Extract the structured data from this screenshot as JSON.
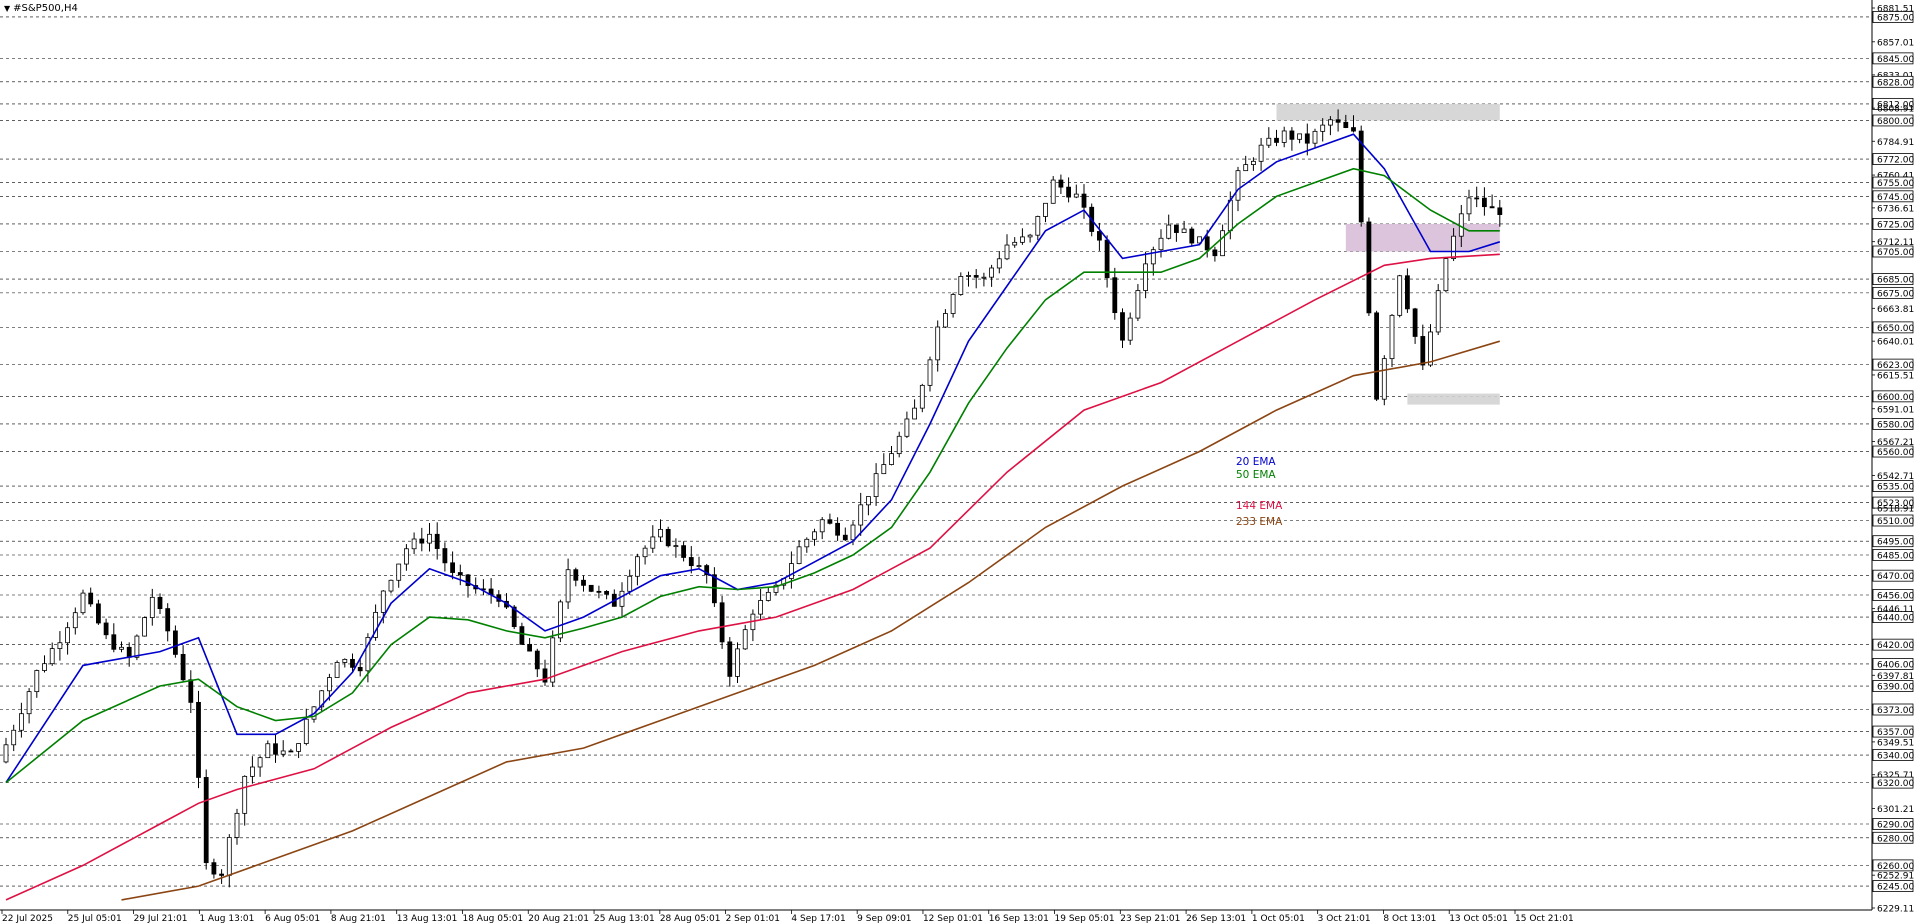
{
  "window": {
    "title": "#S&P500,H4"
  },
  "chart_data": {
    "type": "candlestick",
    "symbol": "#S&P500",
    "timeframe": "H4",
    "ylim": [
      6229.11,
      6881.51
    ],
    "price_axis_labels": [
      {
        "value": 6881.51,
        "boxed": false
      },
      {
        "value": 6875.0,
        "boxed": true
      },
      {
        "value": 6857.01,
        "boxed": false
      },
      {
        "value": 6845.0,
        "boxed": true
      },
      {
        "value": 6833.01,
        "boxed": false
      },
      {
        "value": 6828.0,
        "boxed": true
      },
      {
        "value": 6812.0,
        "boxed": true
      },
      {
        "value": 6808.91,
        "boxed": false
      },
      {
        "value": 6800.0,
        "boxed": true
      },
      {
        "value": 6784.91,
        "boxed": false
      },
      {
        "value": 6772.0,
        "boxed": true
      },
      {
        "value": 6760.41,
        "boxed": false
      },
      {
        "value": 6755.0,
        "boxed": true
      },
      {
        "value": 6745.0,
        "boxed": true
      },
      {
        "value": 6736.61,
        "boxed": false
      },
      {
        "value": 6725.0,
        "boxed": true
      },
      {
        "value": 6712.11,
        "boxed": false
      },
      {
        "value": 6705.0,
        "boxed": true
      },
      {
        "value": 6685.0,
        "boxed": true
      },
      {
        "value": 6675.0,
        "boxed": true
      },
      {
        "value": 6663.81,
        "boxed": false
      },
      {
        "value": 6650.0,
        "boxed": true
      },
      {
        "value": 6640.01,
        "boxed": false
      },
      {
        "value": 6623.0,
        "boxed": true
      },
      {
        "value": 6615.51,
        "boxed": false
      },
      {
        "value": 6600.0,
        "boxed": true
      },
      {
        "value": 6591.01,
        "boxed": false
      },
      {
        "value": 6580.0,
        "boxed": true
      },
      {
        "value": 6567.21,
        "boxed": false
      },
      {
        "value": 6560.0,
        "boxed": true
      },
      {
        "value": 6542.71,
        "boxed": false
      },
      {
        "value": 6535.0,
        "boxed": true
      },
      {
        "value": 6523.0,
        "boxed": true
      },
      {
        "value": 6518.91,
        "boxed": false
      },
      {
        "value": 6510.0,
        "boxed": true
      },
      {
        "value": 6495.0,
        "boxed": true
      },
      {
        "value": 6485.0,
        "boxed": true
      },
      {
        "value": 6470.0,
        "boxed": true
      },
      {
        "value": 6456.0,
        "boxed": true
      },
      {
        "value": 6446.11,
        "boxed": false
      },
      {
        "value": 6440.0,
        "boxed": true
      },
      {
        "value": 6420.0,
        "boxed": true
      },
      {
        "value": 6406.0,
        "boxed": true
      },
      {
        "value": 6397.81,
        "boxed": false
      },
      {
        "value": 6390.0,
        "boxed": true
      },
      {
        "value": 6373.0,
        "boxed": true
      },
      {
        "value": 6357.0,
        "boxed": true
      },
      {
        "value": 6349.51,
        "boxed": false
      },
      {
        "value": 6340.0,
        "boxed": true
      },
      {
        "value": 6325.71,
        "boxed": false
      },
      {
        "value": 6320.0,
        "boxed": true
      },
      {
        "value": 6301.21,
        "boxed": false
      },
      {
        "value": 6290.0,
        "boxed": true
      },
      {
        "value": 6280.0,
        "boxed": true
      },
      {
        "value": 6260.0,
        "boxed": true
      },
      {
        "value": 6252.91,
        "boxed": false
      },
      {
        "value": 6245.0,
        "boxed": true
      },
      {
        "value": 6229.11,
        "boxed": false
      }
    ],
    "time_axis_labels": [
      "22 Jul 2025",
      "25 Jul 05:01",
      "29 Jul 21:01",
      "1 Aug 13:01",
      "6 Aug 05:01",
      "8 Aug 21:01",
      "13 Aug 13:01",
      "18 Aug 05:01",
      "20 Aug 21:01",
      "25 Aug 13:01",
      "28 Aug 05:01",
      "2 Sep 01:01",
      "4 Sep 17:01",
      "9 Sep 09:01",
      "12 Sep 01:01",
      "16 Sep 13:01",
      "19 Sep 05:01",
      "23 Sep 21:01",
      "26 Sep 13:01",
      "1 Oct 05:01",
      "3 Oct 21:01",
      "8 Oct 13:01",
      "13 Oct 05:01",
      "15 Oct 21:01"
    ],
    "close_path": [
      [
        0,
        6335
      ],
      [
        2,
        6360
      ],
      [
        5,
        6400
      ],
      [
        8,
        6425
      ],
      [
        11,
        6456
      ],
      [
        14,
        6425
      ],
      [
        17,
        6410
      ],
      [
        20,
        6455
      ],
      [
        22,
        6430
      ],
      [
        25,
        6380
      ],
      [
        27,
        6260
      ],
      [
        29,
        6255
      ],
      [
        32,
        6325
      ],
      [
        35,
        6345
      ],
      [
        38,
        6340
      ],
      [
        41,
        6375
      ],
      [
        44,
        6410
      ],
      [
        47,
        6405
      ],
      [
        50,
        6460
      ],
      [
        53,
        6490
      ],
      [
        56,
        6500
      ],
      [
        59,
        6470
      ],
      [
        62,
        6460
      ],
      [
        65,
        6455
      ],
      [
        68,
        6420
      ],
      [
        71,
        6395
      ],
      [
        74,
        6475
      ],
      [
        77,
        6460
      ],
      [
        80,
        6450
      ],
      [
        83,
        6485
      ],
      [
        86,
        6500
      ],
      [
        89,
        6485
      ],
      [
        92,
        6470
      ],
      [
        95,
        6400
      ],
      [
        98,
        6445
      ],
      [
        101,
        6460
      ],
      [
        104,
        6490
      ],
      [
        107,
        6510
      ],
      [
        110,
        6500
      ],
      [
        113,
        6530
      ],
      [
        116,
        6560
      ],
      [
        119,
        6590
      ],
      [
        122,
        6650
      ],
      [
        125,
        6690
      ],
      [
        128,
        6685
      ],
      [
        131,
        6710
      ],
      [
        134,
        6715
      ],
      [
        137,
        6755
      ],
      [
        140,
        6745
      ],
      [
        143,
        6710
      ],
      [
        146,
        6640
      ],
      [
        149,
        6700
      ],
      [
        152,
        6725
      ],
      [
        155,
        6715
      ],
      [
        158,
        6705
      ],
      [
        161,
        6760
      ],
      [
        164,
        6780
      ],
      [
        167,
        6790
      ],
      [
        170,
        6785
      ],
      [
        173,
        6800
      ],
      [
        176,
        6790
      ],
      [
        179,
        6600
      ],
      [
        182,
        6690
      ],
      [
        185,
        6620
      ],
      [
        188,
        6700
      ],
      [
        191,
        6745
      ],
      [
        194,
        6735
      ]
    ],
    "ema_lines": [
      {
        "name": "20 EMA",
        "color": "#0000cc",
        "values": [
          [
            0,
            6320
          ],
          [
            10,
            6405
          ],
          [
            20,
            6415
          ],
          [
            25,
            6425
          ],
          [
            30,
            6355
          ],
          [
            35,
            6355
          ],
          [
            40,
            6370
          ],
          [
            45,
            6400
          ],
          [
            50,
            6450
          ],
          [
            55,
            6475
          ],
          [
            60,
            6465
          ],
          [
            65,
            6450
          ],
          [
            70,
            6430
          ],
          [
            75,
            6440
          ],
          [
            80,
            6455
          ],
          [
            85,
            6470
          ],
          [
            90,
            6475
          ],
          [
            95,
            6460
          ],
          [
            100,
            6465
          ],
          [
            105,
            6480
          ],
          [
            110,
            6495
          ],
          [
            115,
            6525
          ],
          [
            120,
            6580
          ],
          [
            125,
            6640
          ],
          [
            130,
            6680
          ],
          [
            135,
            6720
          ],
          [
            140,
            6735
          ],
          [
            145,
            6700
          ],
          [
            150,
            6705
          ],
          [
            155,
            6710
          ],
          [
            160,
            6750
          ],
          [
            165,
            6770
          ],
          [
            170,
            6780
          ],
          [
            175,
            6790
          ],
          [
            179,
            6765
          ],
          [
            185,
            6705
          ],
          [
            190,
            6705
          ],
          [
            194,
            6712
          ]
        ]
      },
      {
        "name": "50 EMA",
        "color": "#008000",
        "values": [
          [
            0,
            6320
          ],
          [
            10,
            6365
          ],
          [
            20,
            6390
          ],
          [
            25,
            6395
          ],
          [
            30,
            6375
          ],
          [
            35,
            6365
          ],
          [
            40,
            6368
          ],
          [
            45,
            6385
          ],
          [
            50,
            6420
          ],
          [
            55,
            6440
          ],
          [
            60,
            6438
          ],
          [
            65,
            6430
          ],
          [
            70,
            6425
          ],
          [
            75,
            6432
          ],
          [
            80,
            6440
          ],
          [
            85,
            6455
          ],
          [
            90,
            6462
          ],
          [
            95,
            6460
          ],
          [
            100,
            6462
          ],
          [
            105,
            6472
          ],
          [
            110,
            6485
          ],
          [
            115,
            6505
          ],
          [
            120,
            6545
          ],
          [
            125,
            6595
          ],
          [
            130,
            6635
          ],
          [
            135,
            6670
          ],
          [
            140,
            6690
          ],
          [
            145,
            6690
          ],
          [
            150,
            6690
          ],
          [
            155,
            6700
          ],
          [
            160,
            6725
          ],
          [
            165,
            6745
          ],
          [
            170,
            6755
          ],
          [
            175,
            6765
          ],
          [
            179,
            6760
          ],
          [
            185,
            6735
          ],
          [
            190,
            6720
          ],
          [
            194,
            6720
          ]
        ]
      },
      {
        "name": "144 EMA",
        "color": "#dd1144",
        "values": [
          [
            0,
            6235
          ],
          [
            10,
            6260
          ],
          [
            20,
            6290
          ],
          [
            25,
            6305
          ],
          [
            30,
            6315
          ],
          [
            40,
            6330
          ],
          [
            50,
            6360
          ],
          [
            60,
            6385
          ],
          [
            70,
            6395
          ],
          [
            80,
            6415
          ],
          [
            90,
            6430
          ],
          [
            100,
            6440
          ],
          [
            110,
            6460
          ],
          [
            120,
            6490
          ],
          [
            130,
            6545
          ],
          [
            140,
            6590
          ],
          [
            150,
            6610
          ],
          [
            160,
            6640
          ],
          [
            170,
            6670
          ],
          [
            179,
            6695
          ],
          [
            185,
            6700
          ],
          [
            194,
            6703
          ]
        ]
      },
      {
        "name": "233 EMA",
        "color": "#8b4513",
        "values": [
          [
            15,
            6235
          ],
          [
            25,
            6245
          ],
          [
            35,
            6265
          ],
          [
            45,
            6285
          ],
          [
            55,
            6310
          ],
          [
            65,
            6335
          ],
          [
            75,
            6345
          ],
          [
            85,
            6365
          ],
          [
            95,
            6385
          ],
          [
            105,
            6405
          ],
          [
            115,
            6430
          ],
          [
            125,
            6465
          ],
          [
            135,
            6505
          ],
          [
            145,
            6535
          ],
          [
            155,
            6560
          ],
          [
            165,
            6590
          ],
          [
            175,
            6615
          ],
          [
            185,
            6625
          ],
          [
            194,
            6640
          ]
        ]
      }
    ],
    "zones": [
      {
        "from_x": 165,
        "to_x": 194,
        "y_low": 6800,
        "y_high": 6812,
        "color": "#d3d3d3"
      },
      {
        "from_x": 174,
        "to_x": 194,
        "y_low": 6705,
        "y_high": 6725,
        "color": "#d8bfd8"
      },
      {
        "from_x": 182,
        "to_x": 194,
        "y_low": 6594,
        "y_high": 6602,
        "color": "#d3d3d3"
      }
    ],
    "legend": [
      {
        "label": "20 EMA",
        "color": "#0000cc"
      },
      {
        "label": "50 EMA",
        "color": "#008000"
      },
      {
        "label": "144 EMA",
        "color": "#dd1144"
      },
      {
        "label": "233 EMA",
        "color": "#8b4513"
      }
    ],
    "grid": "dashed-horizontal"
  }
}
